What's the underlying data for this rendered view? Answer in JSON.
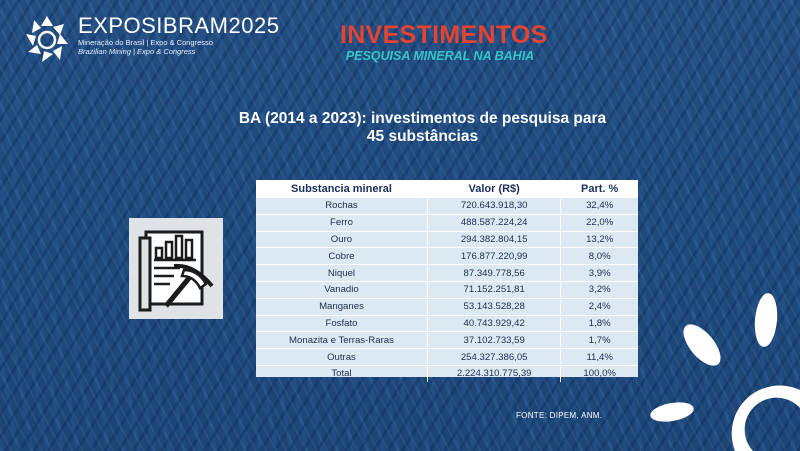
{
  "logo": {
    "title": "EXPOSIBRAM2025",
    "line1": "Mineração do Brasil | Expo & Congresso",
    "line2": "Brazilian Mining | Expo & Congress",
    "icon": "exposibram-flower-logo"
  },
  "header": {
    "title": "INVESTIMENTOS",
    "subtitle": "PESQUISA MINERAL NA BAHIA",
    "colors": {
      "title": "#e8432f",
      "subtitle": "#35c7c9"
    }
  },
  "heading": "BA (2014 a 2023): investimentos de pesquisa para 45 substâncias",
  "icon": "mining-report-icon",
  "table": {
    "columns": [
      "Substancia mineral",
      "Valor (R$)",
      "Part. %"
    ],
    "rows": [
      [
        "Rochas",
        "720.643.918,30",
        "32,4%"
      ],
      [
        "Ferro",
        "488.587.224,24",
        "22,0%"
      ],
      [
        "Ouro",
        "294.382.804,15",
        "13,2%"
      ],
      [
        "Cobre",
        "176.877.220,99",
        "8,0%"
      ],
      [
        "Niquel",
        "87.349.778,56",
        "3,9%"
      ],
      [
        "Vanadio",
        "71.152.251,81",
        "3,2%"
      ],
      [
        "Manganes",
        "53.143.528,28",
        "2,4%"
      ],
      [
        "Fosfato",
        "40.743.929,42",
        "1,8%"
      ],
      [
        "Monazita e Terras-Raras",
        "37.102.733,59",
        "1,7%"
      ],
      [
        "Outras",
        "254.327.386,05",
        "11,4%"
      ],
      [
        "Total",
        "2.224.310.775,39",
        "100,0%"
      ]
    ]
  },
  "source": "FONTE: DIPEM, ANM."
}
